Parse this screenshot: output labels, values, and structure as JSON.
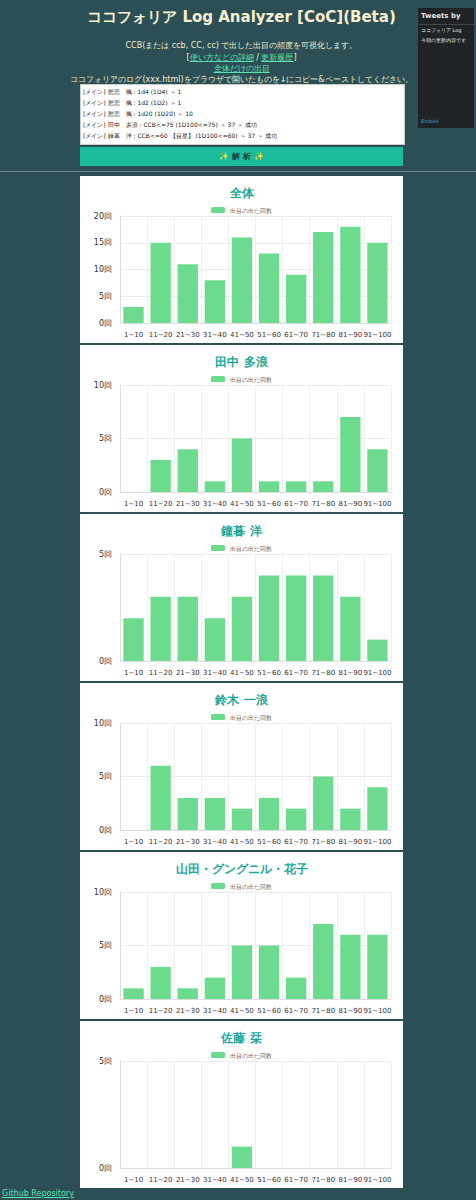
{
  "header": {
    "title": "ココフォリア Log Analyzer [CoC](Beta)",
    "description": "CCB(または ccb, CC, cc) で出した出目の頻度を可視化します。",
    "links_line": {
      "open": "[",
      "items": [
        "使い方などの詳細",
        "更新履歴"
      ],
      "separator": " / ",
      "close": "]"
    },
    "overall_link": "全体だけの出目",
    "instruction": "ココフォリアのログ(xxx.html)をブラウザで開いたものを↓にコピー&ペーストしてください。"
  },
  "textarea": {
    "lines": [
      "[メイン] 愁悲　楓 : 1d4  (1D4) ＞ 1",
      "[メイン] 愁悲　楓 : 1d2  (1D2) ＞ 1",
      "[メイン] 愁悲　楓 : 1d20  (1D20) ＞ 10",
      "[メイン] 田中　多浪 : CCB<=75  (1D100<=75) ＞ 37 ＞ 成功",
      "[メイン] 鐘暮　洋 : CCB<=60 【目星】 (1D100<=60) ＞ 37 ＞ 成功"
    ]
  },
  "button": {
    "label": "✨ 解 析 ✨"
  },
  "tweets": {
    "head": "Tweets by",
    "account": "ココフォリア Log",
    "text": "今朝の更新内容です",
    "footer": "Embed"
  },
  "footer": {
    "link": "Github Repository"
  },
  "chart_data": [
    {
      "type": "bar",
      "title": "全体",
      "categories": [
        "1~10",
        "11~20",
        "21~30",
        "31~40",
        "41~50",
        "51~60",
        "61~70",
        "71~80",
        "81~90",
        "91~100"
      ],
      "series": [
        {
          "name": "出目の出た回数",
          "color": "#6ddb8e",
          "values": [
            3,
            15,
            11,
            8,
            16,
            13,
            9,
            17,
            18,
            15
          ]
        }
      ],
      "ylim": [
        0,
        20
      ],
      "yticks": [
        {
          "value": 0,
          "label": "0回"
        },
        {
          "value": 5,
          "label": "5回"
        },
        {
          "value": 10,
          "label": "10回"
        },
        {
          "value": 15,
          "label": "15回"
        },
        {
          "value": 20,
          "label": "20回"
        }
      ],
      "grid": true,
      "legend": "top"
    },
    {
      "type": "bar",
      "title": "田中 多浪",
      "categories": [
        "1~10",
        "11~20",
        "21~30",
        "31~40",
        "41~50",
        "51~60",
        "61~70",
        "71~80",
        "81~90",
        "91~100"
      ],
      "series": [
        {
          "name": "出目の出た回数",
          "color": "#6ddb8e",
          "values": [
            0,
            3,
            4,
            1,
            5,
            1,
            1,
            1,
            7,
            4
          ]
        }
      ],
      "ylim": [
        0,
        10
      ],
      "yticks": [
        {
          "value": 0,
          "label": "0回"
        },
        {
          "value": 5,
          "label": "5回"
        },
        {
          "value": 10,
          "label": "10回"
        }
      ],
      "grid": true,
      "legend": "top"
    },
    {
      "type": "bar",
      "title": "鐘暮 洋",
      "categories": [
        "1~10",
        "11~20",
        "21~30",
        "31~40",
        "41~50",
        "51~60",
        "61~70",
        "71~80",
        "81~90",
        "91~100"
      ],
      "series": [
        {
          "name": "出目の出た回数",
          "color": "#6ddb8e",
          "values": [
            2,
            3,
            3,
            2,
            3,
            4,
            4,
            4,
            3,
            1
          ]
        }
      ],
      "ylim": [
        0,
        5
      ],
      "yticks": [
        {
          "value": 0,
          "label": "0回"
        },
        {
          "value": 5,
          "label": "5回"
        }
      ],
      "grid": true,
      "legend": "top"
    },
    {
      "type": "bar",
      "title": "鈴木 一浪",
      "categories": [
        "1~10",
        "11~20",
        "21~30",
        "31~40",
        "41~50",
        "51~60",
        "61~70",
        "71~80",
        "81~90",
        "91~100"
      ],
      "series": [
        {
          "name": "出目の出た回数",
          "color": "#6ddb8e",
          "values": [
            0,
            6,
            3,
            3,
            2,
            3,
            2,
            5,
            2,
            4
          ]
        }
      ],
      "ylim": [
        0,
        10
      ],
      "yticks": [
        {
          "value": 0,
          "label": "0回"
        },
        {
          "value": 5,
          "label": "5回"
        },
        {
          "value": 10,
          "label": "10回"
        }
      ],
      "grid": true,
      "legend": "top"
    },
    {
      "type": "bar",
      "title": "山田・グングニル・花子",
      "categories": [
        "1~10",
        "11~20",
        "21~30",
        "31~40",
        "41~50",
        "51~60",
        "61~70",
        "71~80",
        "81~90",
        "91~100"
      ],
      "series": [
        {
          "name": "出目の出た回数",
          "color": "#6ddb8e",
          "values": [
            1,
            3,
            1,
            2,
            5,
            5,
            2,
            7,
            6,
            6
          ]
        }
      ],
      "ylim": [
        0,
        10
      ],
      "yticks": [
        {
          "value": 0,
          "label": "0回"
        },
        {
          "value": 5,
          "label": "5回"
        },
        {
          "value": 10,
          "label": "10回"
        }
      ],
      "grid": true,
      "legend": "top"
    },
    {
      "type": "bar",
      "title": "佐藤 栞",
      "categories": [
        "1~10",
        "11~20",
        "21~30",
        "31~40",
        "41~50",
        "51~60",
        "61~70",
        "71~80",
        "81~90",
        "91~100"
      ],
      "series": [
        {
          "name": "出目の出た回数",
          "color": "#6ddb8e",
          "values": [
            0,
            0,
            0,
            0,
            1,
            0,
            0,
            0,
            0,
            0
          ]
        }
      ],
      "ylim": [
        0,
        5
      ],
      "yticks": [
        {
          "value": 0,
          "label": "0回"
        },
        {
          "value": 5,
          "label": "5回"
        }
      ],
      "grid": true,
      "legend": "top"
    }
  ]
}
